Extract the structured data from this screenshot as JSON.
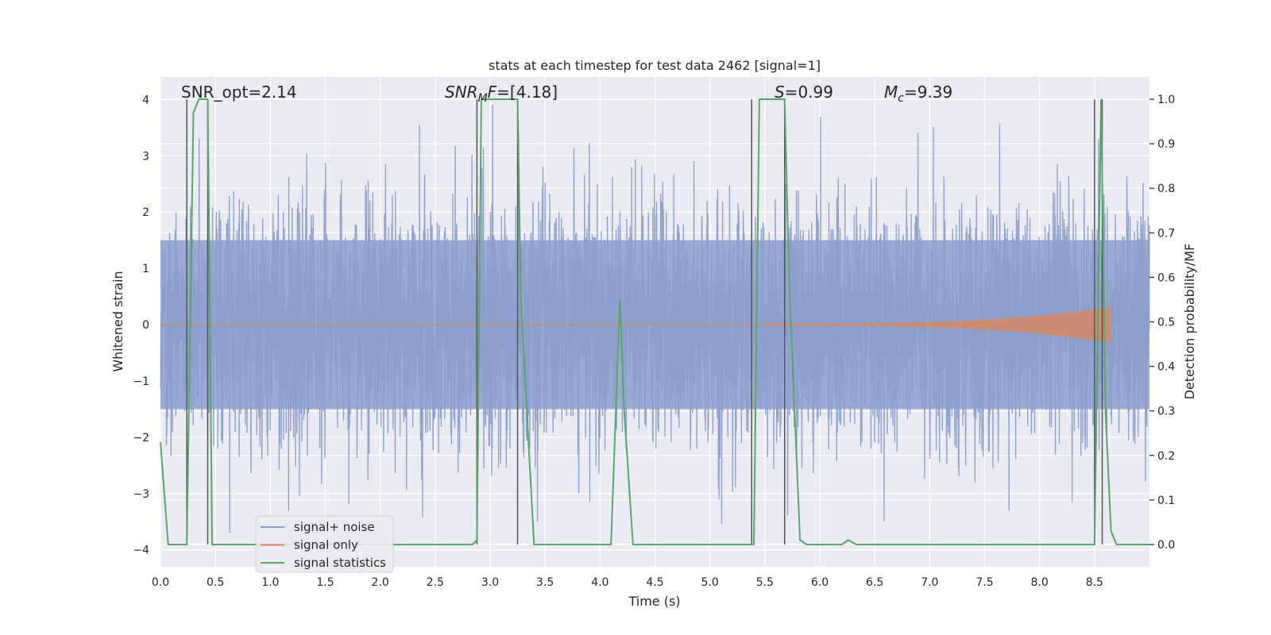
{
  "chart_data": {
    "type": "line",
    "title": "stats at each timestep for test data 2462 [signal=1]",
    "xlabel": "Time (s)",
    "ylabel": "Whitened strain",
    "y2label": "Detection probability/MF",
    "xlim": [
      0,
      9
    ],
    "ylim": [
      -4.3,
      4.4
    ],
    "y2lim": [
      -0.05,
      1.05
    ],
    "grid": true,
    "legend_position": "lower-left",
    "x_ticks": [
      "0.0",
      "0.5",
      "1.0",
      "1.5",
      "2.0",
      "2.5",
      "3.0",
      "3.5",
      "4.0",
      "4.5",
      "5.0",
      "5.5",
      "6.0",
      "6.5",
      "7.0",
      "7.5",
      "8.0",
      "8.5"
    ],
    "y_ticks": [
      "−4",
      "−3",
      "−2",
      "−1",
      "0",
      "1",
      "2",
      "3",
      "4"
    ],
    "y2_ticks": [
      "0.0",
      "0.1",
      "0.2",
      "0.3",
      "0.4",
      "0.5",
      "0.6",
      "0.7",
      "0.8",
      "0.9",
      "1.0"
    ],
    "annotations": [
      {
        "text": "SNR_opt=2.14",
        "x": 0.2,
        "y": 4.0
      },
      {
        "text": "SNR_MF=[4.18]",
        "x": 2.6,
        "y": 4.0
      },
      {
        "text": "S=0.99",
        "x": 5.6,
        "y": 4.0
      },
      {
        "text": "M_c=9.39",
        "x": 6.6,
        "y": 4.0
      }
    ],
    "series": [
      {
        "name": "signal+ noise",
        "color": "#8c9fcc",
        "description_kind": "noise",
        "amplitude_typical": 1.6,
        "amplitude_max": 3.9
      },
      {
        "name": "signal only",
        "color": "#dd8452",
        "x_range": [
          5.5,
          8.65
        ],
        "amplitude_end": 0.3
      },
      {
        "name": "signal statistics",
        "color": "#55a868",
        "x": [
          0.0,
          0.07,
          0.24,
          0.3,
          0.35,
          0.43,
          0.47,
          2.84,
          2.88,
          2.92,
          2.95,
          3.25,
          3.28,
          3.4,
          3.75,
          4.1,
          4.18,
          4.22,
          4.3,
          5.4,
          5.45,
          5.68,
          5.72,
          5.82,
          5.88,
          6.2,
          6.26,
          6.33,
          6.8,
          6.9,
          8.5,
          8.56,
          8.6,
          8.65,
          8.7,
          9.0
        ],
        "y": [
          0.23,
          0.0,
          0.0,
          0.97,
          1.0,
          1.0,
          0.0,
          0.0,
          0.01,
          1.0,
          1.0,
          1.0,
          0.55,
          0.0,
          0.0,
          0.0,
          0.55,
          0.3,
          0.0,
          0.0,
          1.0,
          1.0,
          0.6,
          0.01,
          0.0,
          0.0,
          0.01,
          0.0,
          0.0,
          0.0,
          0.0,
          1.0,
          0.3,
          0.03,
          0.0,
          0.0
        ]
      }
    ],
    "vertical_lines": [
      0.24,
      0.43,
      2.88,
      3.25,
      5.38,
      5.68,
      8.5,
      8.57
    ],
    "legend": [
      "signal+ noise",
      "signal only",
      "signal statistics"
    ]
  }
}
